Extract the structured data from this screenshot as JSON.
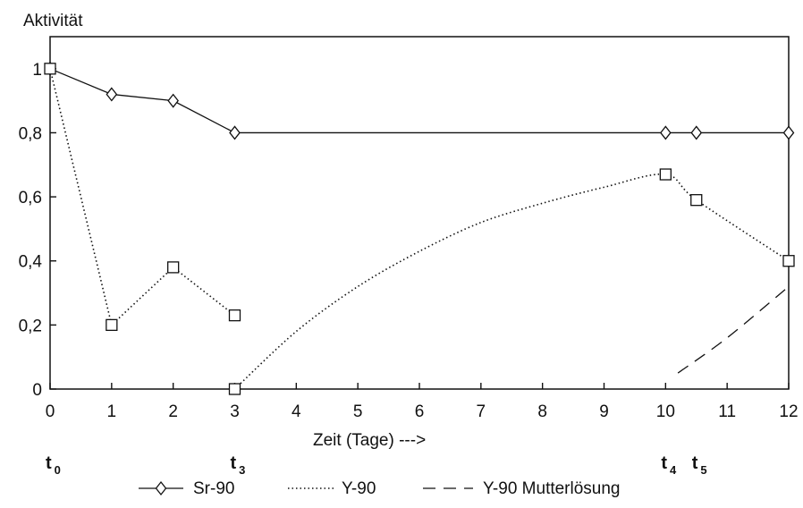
{
  "chart_data": {
    "type": "line",
    "title": "",
    "ylabel": "Aktivität",
    "xlabel": "Zeit (Tage) --->",
    "xlim": [
      0,
      12
    ],
    "ylim": [
      0,
      1.1
    ],
    "x_ticks": [
      "0",
      "1",
      "2",
      "3",
      "4",
      "5",
      "6",
      "7",
      "8",
      "9",
      "10",
      "11",
      "12"
    ],
    "y_ticks": [
      {
        "value": 0,
        "label": "0"
      },
      {
        "value": 0.2,
        "label": "0,2"
      },
      {
        "value": 0.4,
        "label": "0,4"
      },
      {
        "value": 0.6,
        "label": "0,6"
      },
      {
        "value": 0.8,
        "label": "0,8"
      },
      {
        "value": 1,
        "label": "1"
      }
    ],
    "grid": false,
    "legend_position": "bottom",
    "time_markers": [
      {
        "base": "t",
        "sub": "0",
        "x": 0
      },
      {
        "base": "t",
        "sub": "3",
        "x": 3
      },
      {
        "base": "t",
        "sub": "4",
        "x": 10
      },
      {
        "base": "t",
        "sub": "5",
        "x": 10.5
      }
    ],
    "series": [
      {
        "name": "Sr-90",
        "line_style": "solid",
        "marker": "diamond",
        "points": [
          [
            0,
            1.0
          ],
          [
            1,
            0.92
          ],
          [
            2,
            0.9
          ],
          [
            3,
            0.8
          ],
          [
            10,
            0.8
          ],
          [
            10.5,
            0.8
          ],
          [
            12,
            0.8
          ]
        ]
      },
      {
        "name": "Y-90",
        "line_style": "dotted",
        "marker": "square",
        "segments": [
          [
            [
              0,
              1.0
            ],
            [
              1,
              0.2
            ],
            [
              2,
              0.38
            ],
            [
              3,
              0.23
            ]
          ],
          [
            [
              3,
              0.0
            ],
            [
              4,
              0.18
            ],
            [
              5,
              0.32
            ],
            [
              6,
              0.43
            ],
            [
              7,
              0.52
            ],
            [
              8,
              0.58
            ],
            [
              9,
              0.63
            ],
            [
              10,
              0.67
            ],
            [
              10.5,
              0.59
            ],
            [
              12,
              0.4
            ]
          ]
        ],
        "marked_points": [
          [
            0,
            1.0
          ],
          [
            1,
            0.2
          ],
          [
            2,
            0.38
          ],
          [
            3,
            0.23
          ],
          [
            3,
            0.0
          ],
          [
            10,
            0.67
          ],
          [
            10.5,
            0.59
          ],
          [
            12,
            0.4
          ]
        ]
      },
      {
        "name": "Y-90 Mutterlösung",
        "line_style": "dashed",
        "marker": "none",
        "points": [
          [
            10.2,
            0.05
          ],
          [
            11,
            0.16
          ],
          [
            12,
            0.32
          ]
        ]
      }
    ]
  }
}
